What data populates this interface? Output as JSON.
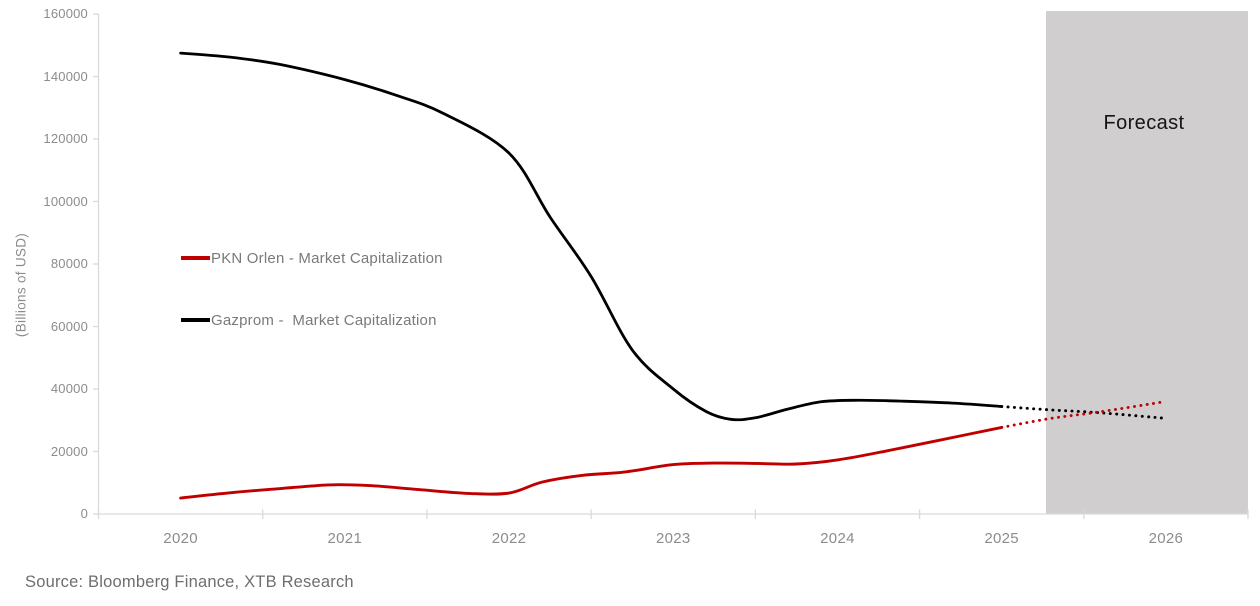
{
  "source_note": "Source: Bloomberg Finance, XTB Research",
  "colors": {
    "pkn_orlen": "#c00000",
    "gazprom": "#000000",
    "axis": "#d9d9d9",
    "forecast_fill": "#d0cece",
    "tick_text": "#8c8c8c",
    "legend_text": "#7a7a7a"
  },
  "chart_data": {
    "type": "line",
    "title": "",
    "xlabel": "",
    "ylabel": "(Billions of USD)",
    "ylim": [
      0,
      160000
    ],
    "xlim": [
      2019.5,
      2026.5
    ],
    "grid": false,
    "legend_position": "inside-left",
    "y_ticks": [
      0,
      20000,
      40000,
      60000,
      80000,
      100000,
      120000,
      140000,
      160000
    ],
    "x_ticks": [
      2020,
      2021,
      2022,
      2023,
      2024,
      2025,
      2026
    ],
    "forecast_region": {
      "label": "Forecast",
      "start_year": 2025.27,
      "end_year": 2026.5
    },
    "series": [
      {
        "name": "PKN Orlen - Market Capitalization",
        "color": "#c00000",
        "points": [
          [
            2020.0,
            5100
          ],
          [
            2020.3,
            6800
          ],
          [
            2020.6,
            8100
          ],
          [
            2020.9,
            9300
          ],
          [
            2021.15,
            9100
          ],
          [
            2021.45,
            7800
          ],
          [
            2021.75,
            6600
          ],
          [
            2022.0,
            6700
          ],
          [
            2022.2,
            10200
          ],
          [
            2022.45,
            12400
          ],
          [
            2022.7,
            13400
          ],
          [
            2023.0,
            15800
          ],
          [
            2023.25,
            16300
          ],
          [
            2023.5,
            16200
          ],
          [
            2023.75,
            16000
          ],
          [
            2024.0,
            17300
          ],
          [
            2024.3,
            20200
          ],
          [
            2024.6,
            23400
          ],
          [
            2025.0,
            27700
          ]
        ],
        "forecast_points": [
          [
            2025.0,
            27700
          ],
          [
            2025.3,
            30600
          ],
          [
            2025.6,
            32700
          ],
          [
            2026.0,
            36000
          ]
        ]
      },
      {
        "name": "Gazprom -  Market Capitalization",
        "color": "#000000",
        "points": [
          [
            2020.0,
            147500
          ],
          [
            2020.3,
            146200
          ],
          [
            2020.6,
            143900
          ],
          [
            2021.0,
            139000
          ],
          [
            2021.3,
            134200
          ],
          [
            2021.6,
            128200
          ],
          [
            2022.0,
            115500
          ],
          [
            2022.25,
            95000
          ],
          [
            2022.5,
            76000
          ],
          [
            2022.75,
            52500
          ],
          [
            2023.0,
            40000
          ],
          [
            2023.2,
            32800
          ],
          [
            2023.35,
            30300
          ],
          [
            2023.5,
            30800
          ],
          [
            2023.7,
            33600
          ],
          [
            2023.9,
            35900
          ],
          [
            2024.1,
            36400
          ],
          [
            2024.4,
            36100
          ],
          [
            2024.7,
            35500
          ],
          [
            2025.0,
            34400
          ]
        ],
        "forecast_points": [
          [
            2025.0,
            34400
          ],
          [
            2025.3,
            33300
          ],
          [
            2025.6,
            32400
          ],
          [
            2026.0,
            30600
          ]
        ]
      }
    ]
  }
}
